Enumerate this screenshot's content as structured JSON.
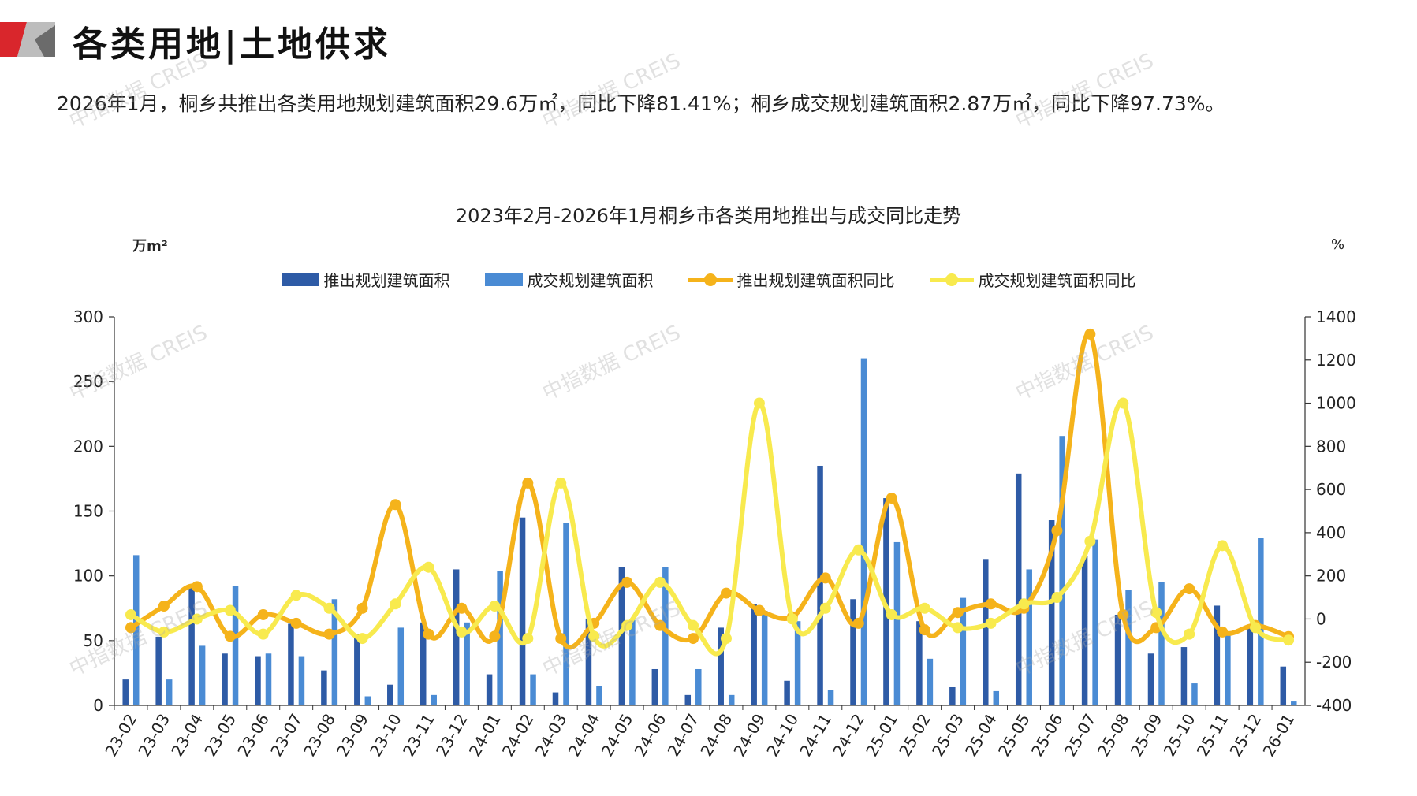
{
  "header": {
    "title": "各类用地|土地供求",
    "summary": "2026年1月，桐乡共推出各类用地规划建筑面积29.6万㎡，同比下降81.41%；桐乡成交规划建筑面积2.87万㎡，同比下降97.73%。"
  },
  "watermark_text": "中指数据 CREIS",
  "colors": {
    "supply_bar": "#2E5BA6",
    "deal_bar": "#4A8BD4",
    "supply_yoy_line": "#F5B31B",
    "deal_yoy_line": "#F8EA4E",
    "logo_red": "#D9262C",
    "logo_gray": "#9A9A9A"
  },
  "chart_data": {
    "type": "bar",
    "title": "2023年2月-2026年1月桐乡市各类用地推出与成交同比走势",
    "ylabel_left": "万m²",
    "ylabel_right": "%",
    "ylim_left": [
      0,
      300
    ],
    "yticks_left": [
      0,
      50,
      100,
      150,
      200,
      250,
      300
    ],
    "ylim_right": [
      -400,
      1400
    ],
    "yticks_right": [
      -400,
      -200,
      0,
      200,
      400,
      600,
      800,
      1000,
      1200,
      1400
    ],
    "legend_position": "top-center",
    "grid": false,
    "categories": [
      "23-02",
      "23-03",
      "23-04",
      "23-05",
      "23-06",
      "23-07",
      "23-08",
      "23-09",
      "23-10",
      "23-11",
      "23-12",
      "24-01",
      "24-02",
      "24-03",
      "24-04",
      "24-05",
      "24-06",
      "24-07",
      "24-08",
      "24-09",
      "24-10",
      "24-11",
      "24-12",
      "25-01",
      "25-02",
      "25-03",
      "25-04",
      "25-05",
      "25-06",
      "25-07",
      "25-08",
      "25-09",
      "25-10",
      "25-11",
      "25-12",
      "26-01"
    ],
    "series": [
      {
        "name": "推出规划建筑面积",
        "kind": "bar",
        "axis": "left",
        "values": [
          20,
          53,
          93,
          40,
          38,
          63,
          27,
          55,
          16,
          64,
          105,
          24,
          145,
          10,
          67,
          107,
          28,
          8,
          60,
          78,
          19,
          185,
          82,
          160,
          65,
          14,
          113,
          179,
          143,
          115,
          70,
          40,
          45,
          77,
          60,
          30
        ]
      },
      {
        "name": "成交规划建筑面积",
        "kind": "bar",
        "axis": "left",
        "values": [
          116,
          20,
          46,
          92,
          40,
          38,
          82,
          7,
          60,
          8,
          64,
          104,
          24,
          141,
          15,
          66,
          107,
          28,
          8,
          73,
          65,
          12,
          268,
          126,
          36,
          83,
          11,
          105,
          208,
          128,
          89,
          95,
          17,
          55,
          129,
          3
        ]
      },
      {
        "name": "推出规划建筑面积同比",
        "kind": "line",
        "axis": "right",
        "values": [
          -40,
          60,
          150,
          -80,
          20,
          -20,
          -70,
          50,
          530,
          -70,
          50,
          -80,
          630,
          -90,
          -20,
          170,
          -30,
          -90,
          120,
          40,
          10,
          190,
          -20,
          560,
          -50,
          30,
          70,
          50,
          410,
          1320,
          20,
          -40,
          140,
          -60,
          -30,
          -81.41
        ]
      },
      {
        "name": "成交规划建筑面积同比",
        "kind": "line",
        "axis": "right",
        "values": [
          20,
          -60,
          0,
          40,
          -70,
          110,
          50,
          -90,
          70,
          240,
          -60,
          60,
          -90,
          630,
          -80,
          -30,
          170,
          -30,
          -90,
          1000,
          0,
          50,
          320,
          20,
          50,
          -40,
          -20,
          70,
          100,
          360,
          1000,
          30,
          -70,
          340,
          -40,
          -97.73
        ]
      }
    ]
  }
}
